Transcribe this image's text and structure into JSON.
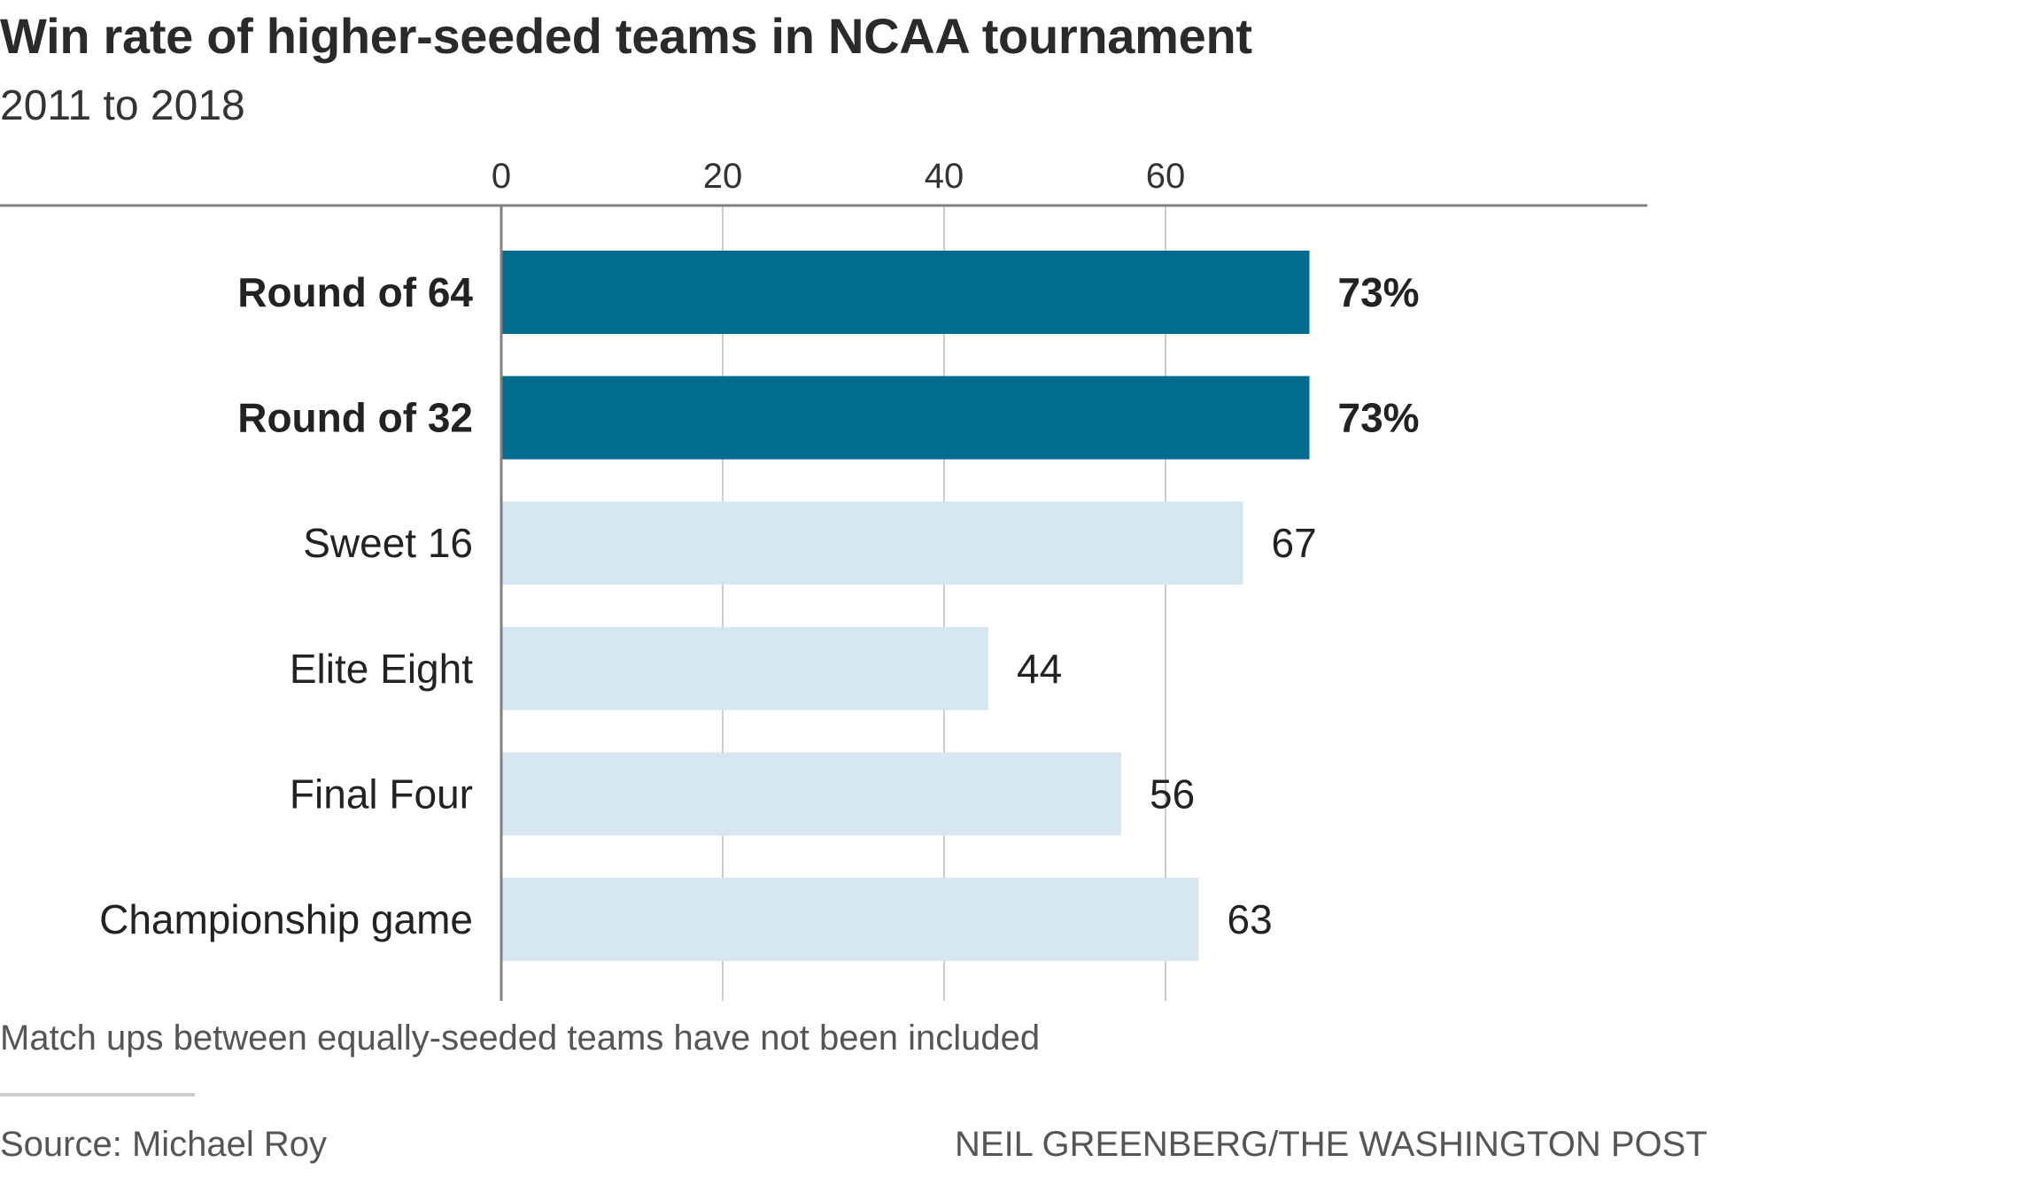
{
  "title": "Win rate of higher-seeded teams in NCAA tournament",
  "subtitle": "2011 to 2018",
  "note": "Match ups between equally-seeded teams have not been included",
  "source": "Source: Michael Roy",
  "credit": "NEIL GREENBERG/THE WASHINGTON POST",
  "colors": {
    "highlight": "#006d8f",
    "default": "#d6e7f1",
    "axis": "#808080",
    "grid": "#cccccc"
  },
  "chart_data": {
    "type": "bar",
    "orientation": "horizontal",
    "title": "Win rate of higher-seeded teams in NCAA tournament",
    "subtitle": "2011 to 2018",
    "xlim": [
      0,
      100
    ],
    "xticks": [
      0,
      20,
      40,
      60
    ],
    "grid": true,
    "categories": [
      "Round of 64",
      "Round of 32",
      "Sweet 16",
      "Elite Eight",
      "Final Four",
      "Championship game"
    ],
    "values": [
      73,
      73,
      67,
      44,
      56,
      63
    ],
    "value_labels": [
      "73%",
      "73%",
      "67",
      "44",
      "56",
      "63"
    ],
    "highlighted": [
      true,
      true,
      false,
      false,
      false,
      false
    ]
  }
}
